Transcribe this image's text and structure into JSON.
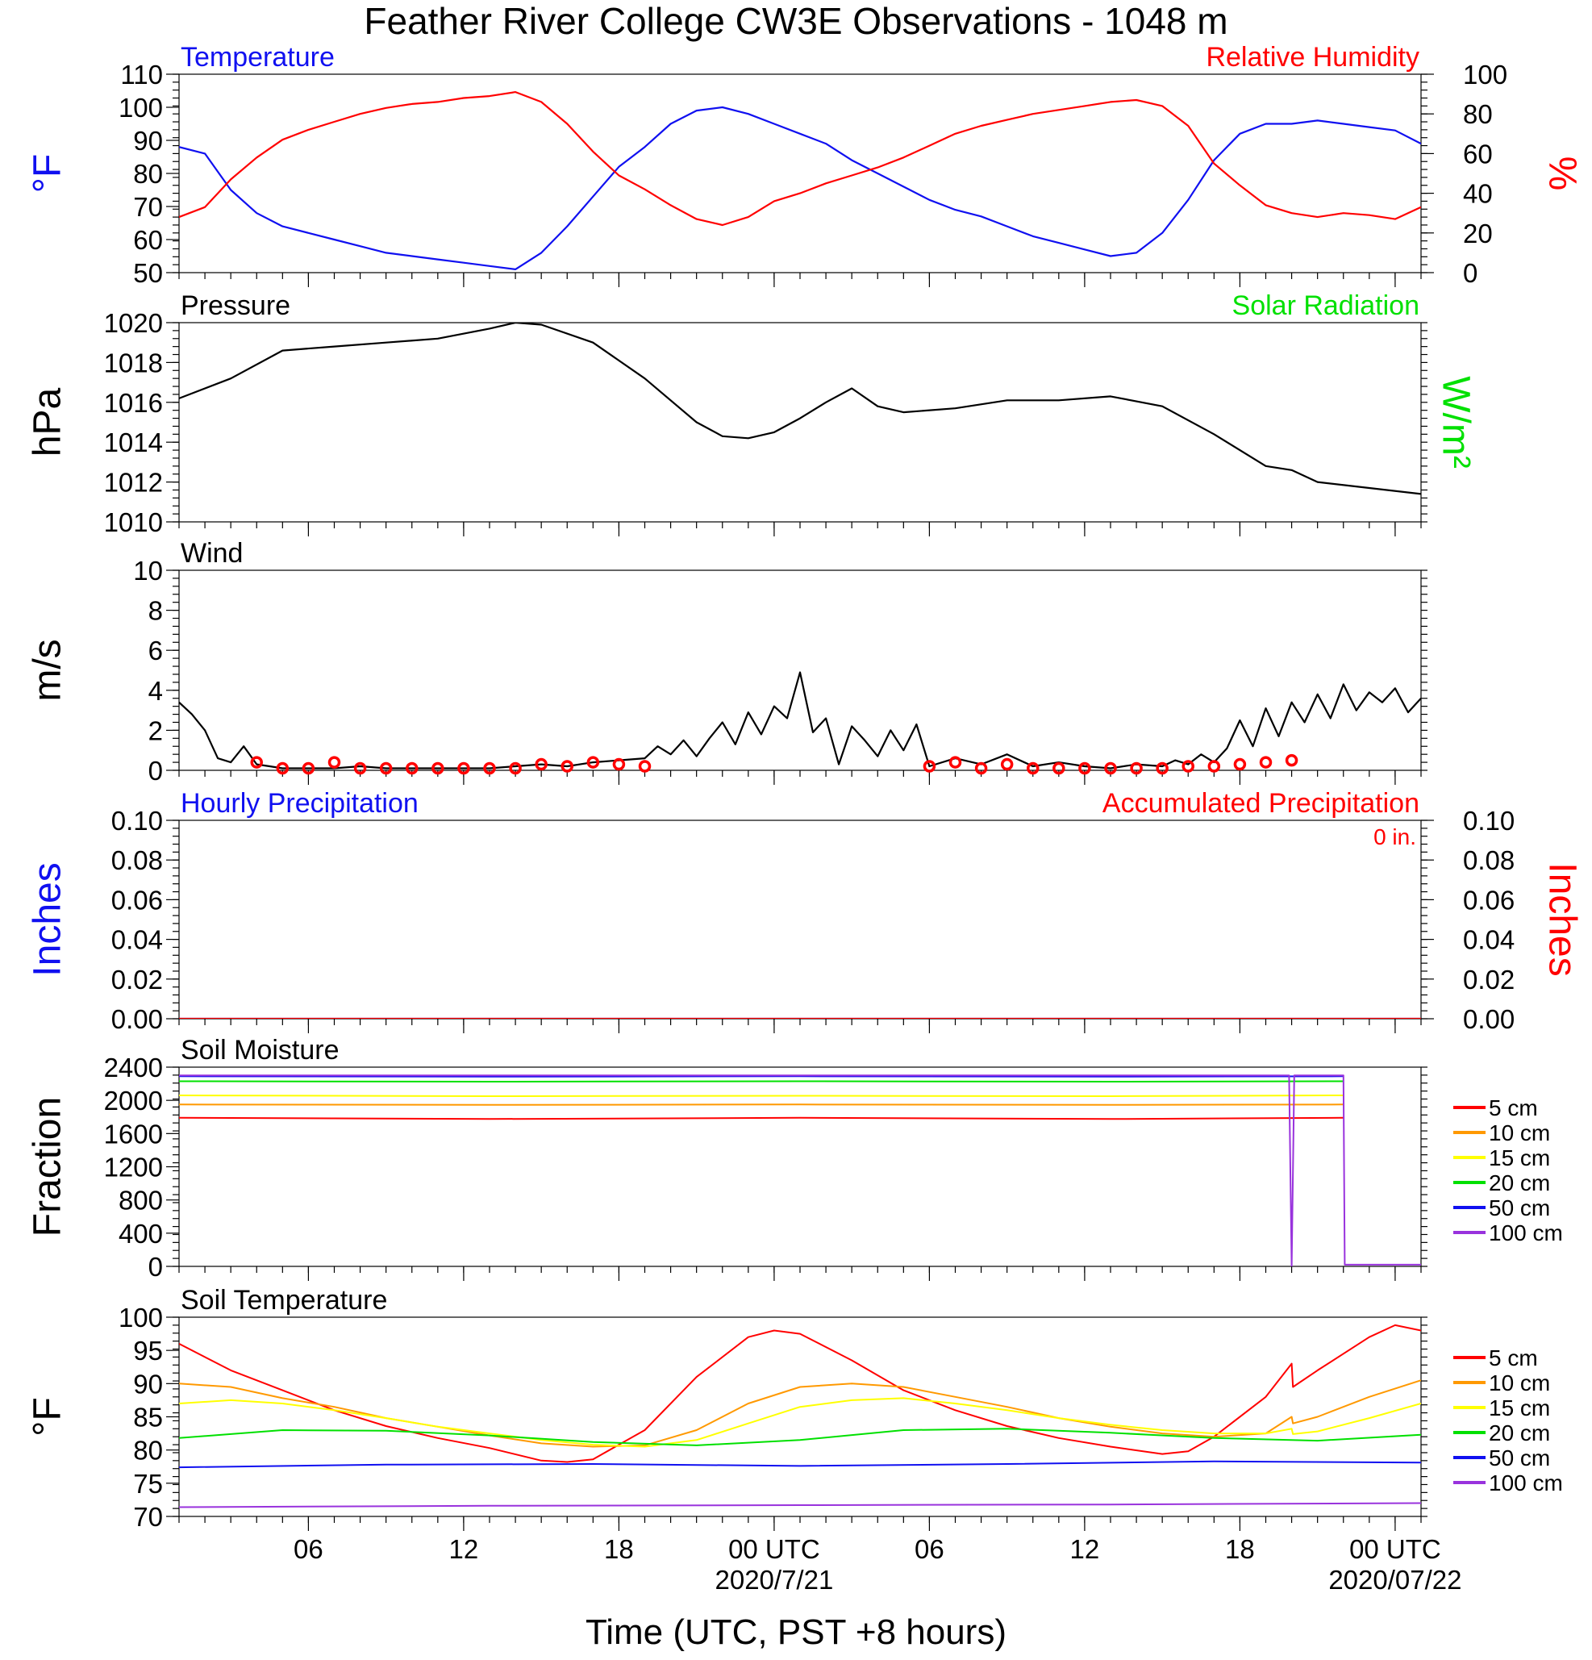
{
  "figure": {
    "title": "Feather River College CW3E Observations - 1048 m",
    "xlabel": "Time (UTC, PST +8 hours)"
  },
  "time_axis": {
    "range_hours": [
      0,
      48
    ],
    "ticks": [
      {
        "hour": 5,
        "label": "06"
      },
      {
        "hour": 11,
        "label": "12"
      },
      {
        "hour": 17,
        "label": "18"
      },
      {
        "hour": 23,
        "label": "00 UTC",
        "date": "2020/7/21"
      },
      {
        "hour": 29,
        "label": "06"
      },
      {
        "hour": 35,
        "label": "12"
      },
      {
        "hour": 41,
        "label": "18"
      },
      {
        "hour": 47,
        "label": "00 UTC",
        "date": "2020/07/22"
      }
    ]
  },
  "colors": {
    "blue": "#1010f0",
    "red": "#ff0000",
    "green": "#00e000",
    "orange": "#ff9900",
    "yellow": "#ffff00",
    "purple": "#9933dd",
    "black": "#000000"
  },
  "chart_data": [
    {
      "id": "temp-rh",
      "type": "line",
      "title_left": "Temperature",
      "title_right": "Relative Humidity",
      "ylabel": "°F",
      "ylabel_right": "%",
      "ylim": [
        50,
        110
      ],
      "ylim_right": [
        0,
        100
      ],
      "yticks": [
        50,
        60,
        70,
        80,
        90,
        100,
        110
      ],
      "yticks_right": [
        0,
        20,
        40,
        60,
        80,
        100
      ],
      "series": [
        {
          "name": "Temperature",
          "color": "#1010f0",
          "axis": "left",
          "x": [
            0,
            1,
            2,
            3,
            4,
            5,
            6,
            7,
            8,
            9,
            10,
            11,
            12,
            13,
            14,
            15,
            16,
            17,
            18,
            19,
            20,
            21,
            22,
            23,
            24,
            25,
            26,
            27,
            28,
            29,
            30,
            31,
            32,
            33,
            34,
            35,
            36,
            37,
            38,
            39,
            40,
            41,
            42,
            43,
            44,
            45,
            46,
            47,
            48
          ],
          "y": [
            88,
            86,
            75,
            68,
            64,
            62,
            60,
            58,
            56,
            55,
            54,
            53,
            52,
            51,
            56,
            64,
            73,
            82,
            88,
            95,
            99,
            100,
            98,
            95,
            92,
            89,
            84,
            80,
            76,
            72,
            69,
            67,
            64,
            61,
            59,
            57,
            55,
            56,
            62,
            72,
            84,
            92,
            95,
            95,
            96,
            95,
            94,
            93,
            89
          ]
        },
        {
          "name": "Relative Humidity",
          "color": "#ff0000",
          "axis": "right",
          "x": [
            0,
            1,
            2,
            3,
            4,
            5,
            6,
            7,
            8,
            9,
            10,
            11,
            12,
            13,
            14,
            15,
            16,
            17,
            18,
            19,
            20,
            21,
            22,
            23,
            24,
            25,
            26,
            27,
            28,
            29,
            30,
            31,
            32,
            33,
            34,
            35,
            36,
            37,
            38,
            39,
            40,
            41,
            42,
            43,
            44,
            45,
            46,
            47,
            48
          ],
          "y": [
            28,
            33,
            47,
            58,
            67,
            72,
            76,
            80,
            83,
            85,
            86,
            88,
            89,
            91,
            86,
            75,
            61,
            49,
            42,
            34,
            27,
            24,
            28,
            36,
            40,
            45,
            49,
            53,
            58,
            64,
            70,
            74,
            77,
            80,
            82,
            84,
            86,
            87,
            84,
            74,
            55,
            44,
            34,
            30,
            28,
            30,
            29,
            27,
            33
          ]
        }
      ]
    },
    {
      "id": "pressure",
      "type": "line",
      "title_left": "Pressure",
      "title_right": "Solar Radiation",
      "ylabel": "hPa",
      "ylabel_right": "W/m²",
      "ylim": [
        1010,
        1020
      ],
      "yticks": [
        1010,
        1012,
        1014,
        1016,
        1018,
        1020
      ],
      "series": [
        {
          "name": "Pressure",
          "color": "#000000",
          "x": [
            0,
            2,
            4,
            6,
            8,
            10,
            12,
            13,
            14,
            16,
            18,
            20,
            21,
            22,
            23,
            24,
            25,
            26,
            27,
            28,
            30,
            32,
            34,
            36,
            38,
            40,
            42,
            43,
            44,
            46,
            48
          ],
          "y": [
            1016.2,
            1017.2,
            1018.6,
            1018.8,
            1019.0,
            1019.2,
            1019.7,
            1020.0,
            1019.9,
            1019.0,
            1017.2,
            1015.0,
            1014.3,
            1014.2,
            1014.5,
            1015.2,
            1016.0,
            1016.7,
            1015.8,
            1015.5,
            1015.7,
            1016.1,
            1016.1,
            1016.3,
            1015.8,
            1014.4,
            1012.8,
            1012.6,
            1012.0,
            1011.7,
            1011.4
          ]
        }
      ]
    },
    {
      "id": "wind",
      "type": "line",
      "title_left": "Wind",
      "ylabel": "m/s",
      "ylim": [
        0,
        10
      ],
      "yticks": [
        0,
        2,
        4,
        6,
        8,
        10
      ],
      "series": [
        {
          "name": "Wind speed",
          "color": "#000000",
          "x": [
            0,
            0.5,
            1,
            1.5,
            2,
            2.5,
            3,
            3.5,
            4,
            5,
            6,
            7,
            8,
            9,
            10,
            11,
            12,
            13,
            14,
            15,
            16,
            17,
            18,
            18.5,
            19,
            19.5,
            20,
            20.5,
            21,
            21.5,
            22,
            22.5,
            23,
            23.5,
            24,
            24.5,
            25,
            25.5,
            26,
            26.5,
            27,
            27.5,
            28,
            28.5,
            29,
            30,
            31,
            32,
            33,
            34,
            35,
            36,
            37,
            38,
            38.5,
            39,
            39.5,
            40,
            40.5,
            41,
            41.5,
            42,
            42.5,
            43,
            43.5,
            44,
            44.5,
            45,
            45.5,
            46,
            46.5,
            47,
            47.5,
            48
          ],
          "y": [
            3.4,
            2.8,
            2.0,
            0.6,
            0.4,
            1.2,
            0.3,
            0.2,
            0.1,
            0.1,
            0.1,
            0.2,
            0.1,
            0.1,
            0.1,
            0.1,
            0.1,
            0.2,
            0.3,
            0.2,
            0.4,
            0.5,
            0.6,
            1.2,
            0.8,
            1.5,
            0.7,
            1.6,
            2.4,
            1.3,
            2.9,
            1.8,
            3.2,
            2.6,
            4.9,
            1.9,
            2.6,
            0.3,
            2.2,
            1.5,
            0.7,
            2.0,
            1.0,
            2.3,
            0.2,
            0.6,
            0.3,
            0.8,
            0.2,
            0.4,
            0.2,
            0.1,
            0.3,
            0.2,
            0.5,
            0.3,
            0.8,
            0.4,
            1.1,
            2.5,
            1.2,
            3.1,
            1.7,
            3.4,
            2.4,
            3.8,
            2.6,
            4.3,
            3.0,
            3.9,
            3.4,
            4.1,
            2.9,
            3.6
          ]
        },
        {
          "name": "Wind direction symbols",
          "color": "#ff0000",
          "x": [
            3,
            4,
            5,
            6,
            7,
            8,
            9,
            10,
            11,
            12,
            13,
            14,
            15,
            16,
            17,
            18,
            29,
            30,
            31,
            32,
            33,
            34,
            35,
            36,
            37,
            38,
            39,
            40,
            41,
            42,
            43
          ],
          "y": [
            0.4,
            0.1,
            0.1,
            0.4,
            0.1,
            0.1,
            0.1,
            0.1,
            0.1,
            0.1,
            0.1,
            0.3,
            0.2,
            0.4,
            0.3,
            0.2,
            0.2,
            0.4,
            0.1,
            0.3,
            0.1,
            0.1,
            0.1,
            0.1,
            0.1,
            0.1,
            0.2,
            0.2,
            0.3,
            0.4,
            0.5
          ]
        }
      ]
    },
    {
      "id": "precip",
      "type": "line",
      "title_left": "Hourly Precipitation",
      "title_right": "Accumulated Precipitation",
      "annotation": "0 in.",
      "ylabel": "Inches",
      "ylabel_right": "Inches",
      "ylim": [
        0,
        0.1
      ],
      "yticks": [
        "0.00",
        "0.02",
        "0.04",
        "0.06",
        "0.08",
        "0.10"
      ],
      "yticks_right": [
        "0.00",
        "0.02",
        "0.04",
        "0.06",
        "0.08",
        "0.10"
      ],
      "series": [
        {
          "name": "Hourly Precipitation",
          "color": "#1010f0",
          "x": [
            0,
            48
          ],
          "y": [
            0,
            0
          ]
        },
        {
          "name": "Accumulated Precipitation",
          "color": "#ff0000",
          "x": [
            0,
            48
          ],
          "y": [
            0,
            0
          ]
        }
      ]
    },
    {
      "id": "soil-moisture",
      "type": "line",
      "title_left": "Soil Moisture",
      "ylabel": "Fraction",
      "ylim": [
        0,
        2400
      ],
      "yticks": [
        0,
        400,
        800,
        1200,
        1600,
        2000,
        2400
      ],
      "legend": [
        "5 cm",
        "10 cm",
        "15 cm",
        "20 cm",
        "50 cm",
        "100 cm"
      ],
      "series": [
        {
          "name": "5 cm",
          "color": "#ff0000",
          "x": [
            0,
            12,
            24,
            36,
            45
          ],
          "y": [
            1790,
            1775,
            1790,
            1775,
            1790
          ]
        },
        {
          "name": "10 cm",
          "color": "#ff9900",
          "x": [
            0,
            12,
            24,
            36,
            45
          ],
          "y": [
            1950,
            1945,
            1950,
            1945,
            1950
          ]
        },
        {
          "name": "15 cm",
          "color": "#ffff00",
          "x": [
            0,
            12,
            24,
            36,
            45
          ],
          "y": [
            2060,
            2050,
            2055,
            2050,
            2060
          ]
        },
        {
          "name": "20 cm",
          "color": "#00e000",
          "x": [
            0,
            12,
            24,
            36,
            45
          ],
          "y": [
            2230,
            2225,
            2230,
            2225,
            2230
          ]
        },
        {
          "name": "50 cm",
          "color": "#1010f0",
          "x": [
            0,
            12,
            24,
            36,
            45
          ],
          "y": [
            2290,
            2285,
            2290,
            2285,
            2290
          ]
        },
        {
          "name": "100 cm",
          "color": "#9933dd",
          "x": [
            0,
            42.9,
            43.0,
            43.1,
            45,
            45.05,
            48
          ],
          "y": [
            2300,
            2300,
            0,
            2300,
            2300,
            20,
            20
          ]
        }
      ]
    },
    {
      "id": "soil-temp",
      "type": "line",
      "title_left": "Soil Temperature",
      "ylabel": "°F",
      "ylim": [
        70,
        100
      ],
      "yticks": [
        70,
        75,
        80,
        85,
        90,
        95,
        100
      ],
      "legend": [
        "5 cm",
        "10 cm",
        "15 cm",
        "20 cm",
        "50 cm",
        "100 cm"
      ],
      "series": [
        {
          "name": "5 cm",
          "color": "#ff0000",
          "x": [
            0,
            2,
            4,
            6,
            8,
            10,
            12,
            14,
            15,
            16,
            18,
            20,
            22,
            23,
            24,
            26,
            28,
            30,
            32,
            34,
            36,
            38,
            39,
            40,
            42,
            43,
            43.05,
            44,
            46,
            47,
            48
          ],
          "y": [
            96,
            92,
            89,
            86,
            83.6,
            81.8,
            80.3,
            78.4,
            78.2,
            78.6,
            83,
            91,
            97,
            98,
            97.5,
            93.5,
            89,
            86,
            83.6,
            81.8,
            80.5,
            79.4,
            79.8,
            82,
            88,
            93,
            89.5,
            92,
            97,
            98.8,
            98
          ]
        },
        {
          "name": "10 cm",
          "color": "#ff9900",
          "x": [
            0,
            2,
            4,
            6,
            8,
            10,
            12,
            14,
            16,
            18,
            20,
            22,
            24,
            26,
            28,
            30,
            32,
            34,
            36,
            38,
            40,
            42,
            43,
            43.05,
            44,
            46,
            48
          ],
          "y": [
            90,
            89.5,
            87.8,
            86.5,
            84.8,
            83.5,
            82.2,
            81,
            80.5,
            80.7,
            83,
            87,
            89.5,
            90,
            89.5,
            88,
            86.5,
            84.8,
            83.5,
            82.5,
            82,
            82.5,
            85,
            84,
            85,
            88,
            90.5
          ]
        },
        {
          "name": "15 cm",
          "color": "#ffff00",
          "x": [
            0,
            2,
            4,
            6,
            8,
            10,
            12,
            14,
            16,
            18,
            20,
            22,
            24,
            26,
            28,
            30,
            32,
            34,
            36,
            38,
            40,
            42,
            43,
            43.05,
            44,
            46,
            48
          ],
          "y": [
            87,
            87.5,
            87,
            86,
            84.8,
            83.5,
            82.5,
            81.5,
            80.8,
            80.5,
            81.5,
            84,
            86.5,
            87.5,
            87.8,
            87,
            86,
            84.8,
            83.8,
            83,
            82.5,
            82.5,
            83.2,
            82.4,
            82.8,
            84.8,
            87
          ]
        },
        {
          "name": "20 cm",
          "color": "#00e000",
          "x": [
            0,
            4,
            8,
            12,
            16,
            20,
            24,
            28,
            32,
            36,
            40,
            44,
            48
          ],
          "y": [
            81.8,
            83,
            82.9,
            82.2,
            81.2,
            80.7,
            81.5,
            83,
            83.2,
            82.6,
            81.8,
            81.4,
            82.3
          ]
        },
        {
          "name": "50 cm",
          "color": "#1010f0",
          "x": [
            0,
            8,
            16,
            24,
            32,
            40,
            48
          ],
          "y": [
            77.4,
            77.8,
            77.9,
            77.6,
            77.9,
            78.3,
            78.1
          ]
        },
        {
          "name": "100 cm",
          "color": "#9933dd",
          "x": [
            0,
            12,
            24,
            36,
            48
          ],
          "y": [
            71.4,
            71.6,
            71.7,
            71.8,
            72
          ]
        }
      ]
    }
  ]
}
